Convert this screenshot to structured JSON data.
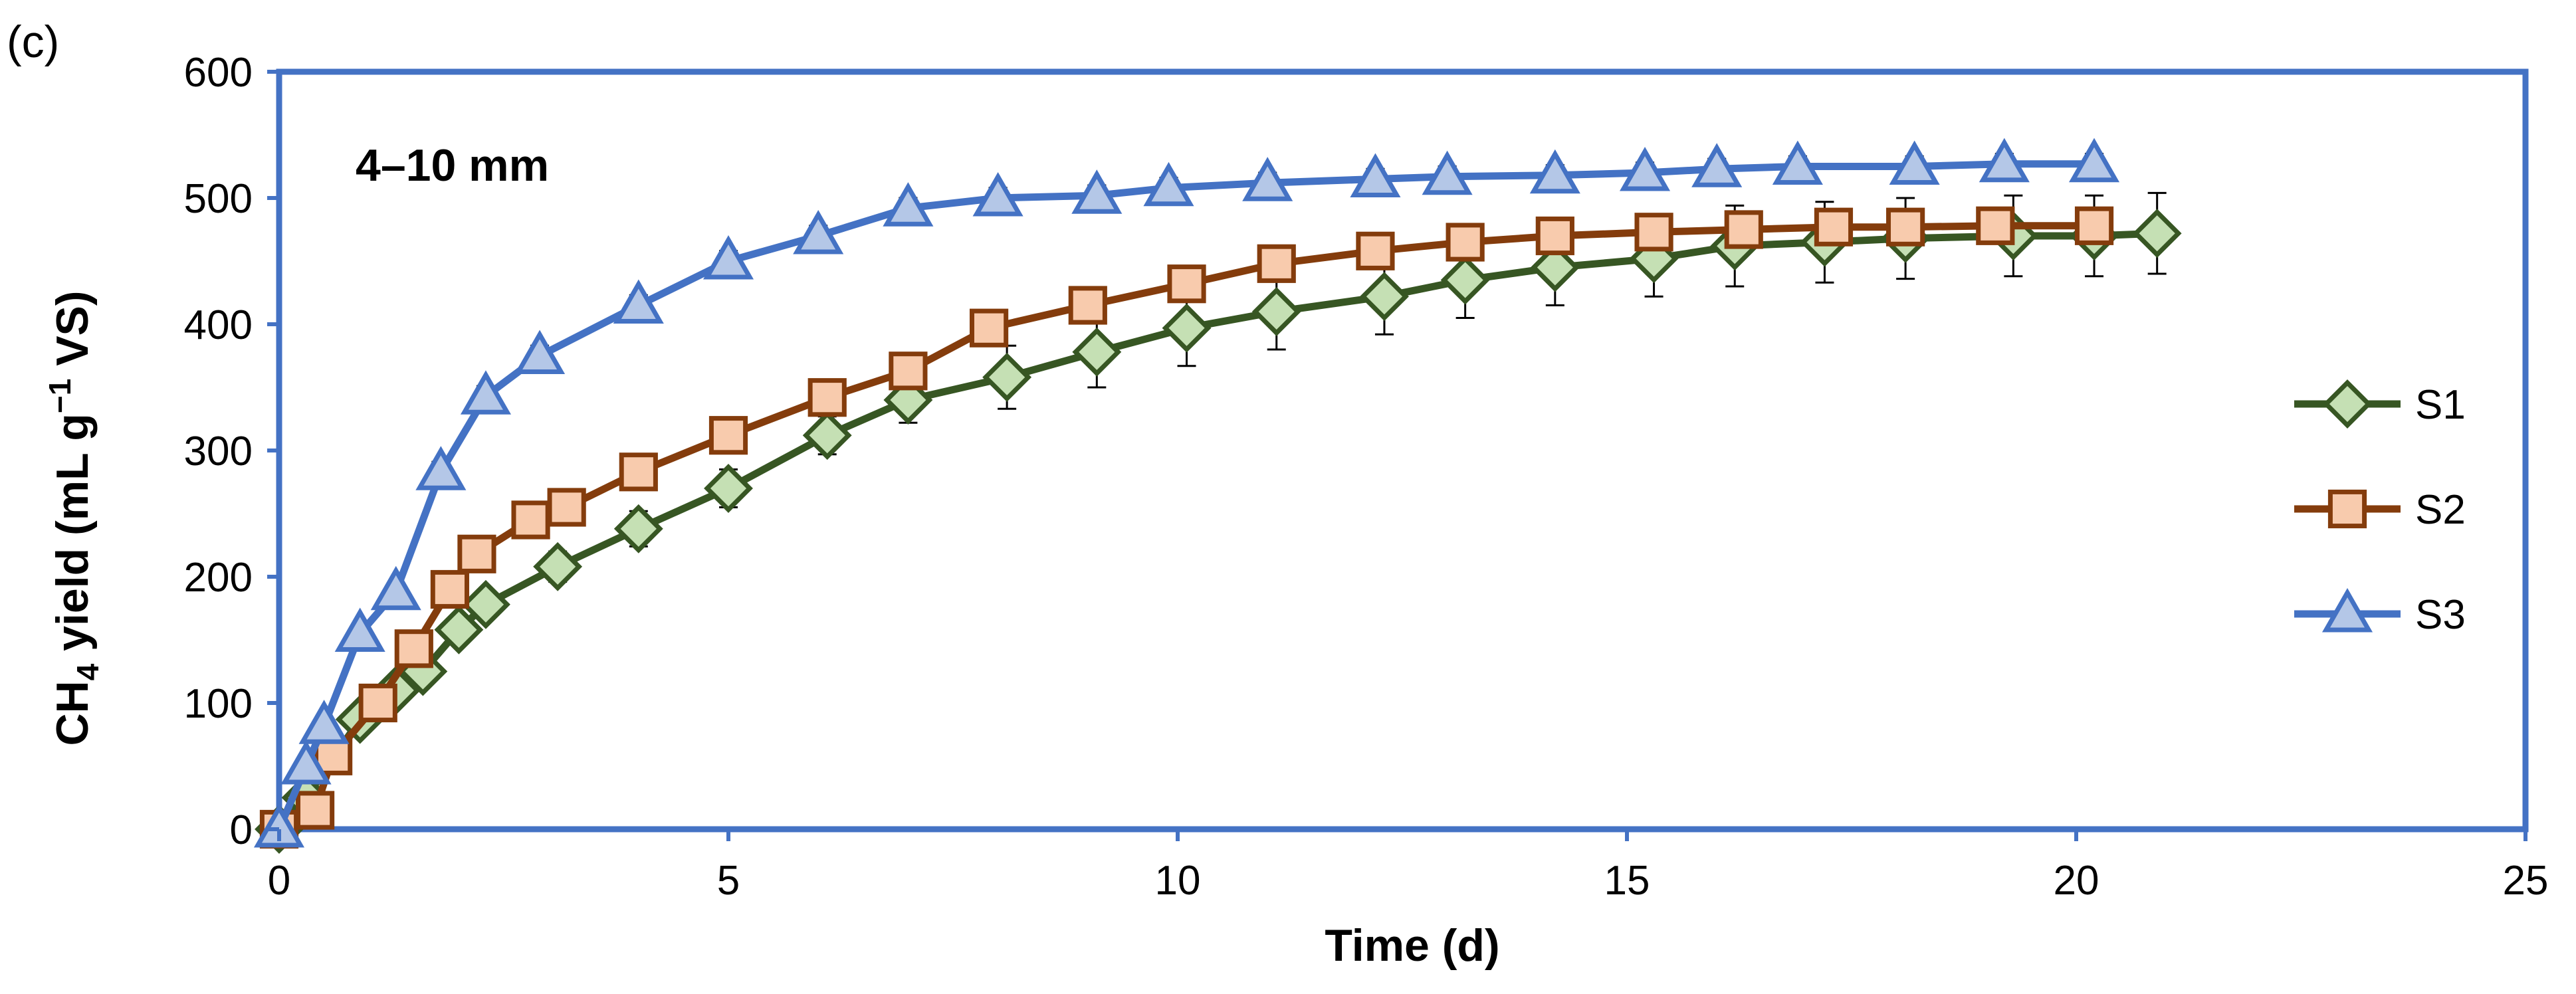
{
  "chart_data": {
    "type": "line",
    "panel_label": "(c)",
    "annotation": "4–10 mm",
    "title": "",
    "xlabel": "Time (d)",
    "ylabel": {
      "prefix": "CH",
      "sub": "4",
      "mid": " yield (mL g",
      "sup": "−1",
      "suffix": " VS)"
    },
    "xlim": [
      0,
      25
    ],
    "ylim": [
      0,
      600
    ],
    "xticks": [
      0,
      5,
      10,
      15,
      20,
      25
    ],
    "yticks": [
      0,
      100,
      200,
      300,
      400,
      500,
      600
    ],
    "grid": false,
    "legend_position": "right",
    "axis_color": "#4472C4",
    "series": [
      {
        "name": "S1",
        "marker": "diamond",
        "line_color": "#375623",
        "marker_fill": "#C5E0B4",
        "x": [
          0,
          0.3,
          0.9,
          1.3,
          1.6,
          2.0,
          2.3,
          3.1,
          4.0,
          5.0,
          6.1,
          7.0,
          8.1,
          9.1,
          10.1,
          11.1,
          12.3,
          13.2,
          14.2,
          15.3,
          16.2,
          17.2,
          18.1,
          19.3,
          20.2,
          20.9
        ],
        "y": [
          0,
          25,
          87,
          110,
          125,
          158,
          178,
          208,
          238,
          270,
          312,
          340,
          358,
          378,
          397,
          410,
          422,
          435,
          445,
          452,
          462,
          465,
          468,
          470,
          470,
          472
        ],
        "error": [
          0,
          5,
          8,
          8,
          8,
          10,
          10,
          12,
          14,
          15,
          15,
          18,
          25,
          28,
          30,
          30,
          30,
          30,
          30,
          30,
          32,
          32,
          32,
          32,
          32,
          32
        ]
      },
      {
        "name": "S2",
        "marker": "square",
        "line_color": "#843C0C",
        "marker_fill": "#F8CBAD",
        "x": [
          0,
          0.4,
          0.6,
          1.1,
          1.5,
          1.9,
          2.2,
          2.8,
          3.2,
          4.0,
          5.0,
          6.1,
          7.0,
          7.9,
          9.0,
          10.1,
          11.1,
          12.2,
          13.2,
          14.2,
          15.3,
          16.3,
          17.3,
          18.1,
          19.1,
          20.2
        ],
        "y": [
          0,
          15,
          58,
          100,
          143,
          190,
          218,
          245,
          255,
          283,
          312,
          342,
          363,
          397,
          415,
          432,
          448,
          458,
          465,
          470,
          473,
          475,
          477,
          477,
          478,
          478
        ],
        "error": [
          0,
          5,
          6,
          6,
          6,
          8,
          8,
          8,
          8,
          8,
          10,
          10,
          10,
          10,
          12,
          12,
          12,
          12,
          12,
          14,
          14,
          14,
          14,
          14,
          14,
          14
        ]
      },
      {
        "name": "S3",
        "marker": "triangle",
        "line_color": "#4472C4",
        "marker_fill": "#B4C7E7",
        "x": [
          0,
          0.3,
          0.5,
          0.9,
          1.3,
          1.8,
          2.3,
          2.9,
          4.0,
          5.0,
          6.0,
          7.0,
          8.0,
          9.1,
          9.9,
          11.0,
          12.2,
          13.0,
          14.2,
          15.2,
          16.0,
          16.9,
          18.2,
          19.2,
          20.2
        ],
        "y": [
          0,
          50,
          82,
          155,
          188,
          283,
          343,
          375,
          415,
          450,
          470,
          492,
          500,
          502,
          508,
          512,
          515,
          517,
          518,
          520,
          523,
          525,
          525,
          527,
          527
        ],
        "error": [
          0,
          5,
          5,
          6,
          6,
          8,
          8,
          8,
          8,
          8,
          8,
          8,
          8,
          8,
          8,
          8,
          8,
          8,
          8,
          8,
          8,
          8,
          8,
          8,
          8
        ]
      }
    ]
  }
}
